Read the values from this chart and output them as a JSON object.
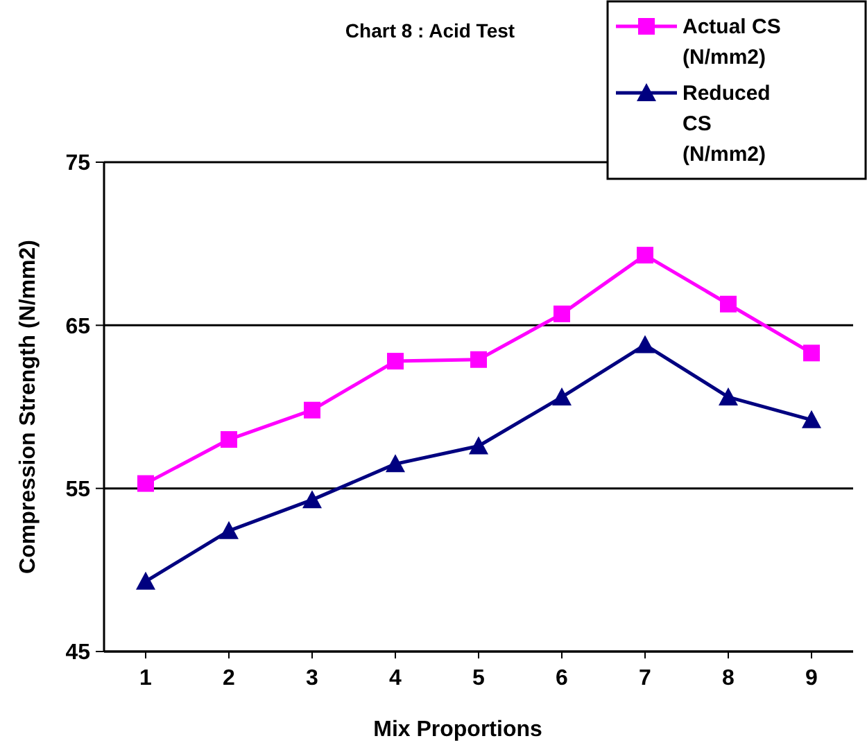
{
  "chart_data": {
    "type": "line",
    "title": "Chart 8 : Acid  Test",
    "xlabel": "Mix  Proportions",
    "ylabel": "Compression Strength (N/mm2)",
    "categories": [
      "1",
      "2",
      "3",
      "4",
      "5",
      "6",
      "7",
      "8",
      "9"
    ],
    "series": [
      {
        "name": "Actual CS (N/mm2)",
        "color": "#ff00ff",
        "marker": "square",
        "values": [
          55.3,
          58.0,
          59.8,
          62.8,
          62.9,
          65.7,
          69.3,
          66.3,
          63.3
        ]
      },
      {
        "name": "Reduced CS (N/mm2)",
        "color": "#000080",
        "marker": "triangle",
        "values": [
          49.3,
          52.4,
          54.3,
          56.5,
          57.6,
          60.6,
          63.8,
          60.6,
          59.2
        ]
      }
    ],
    "ylim": [
      45,
      75
    ],
    "yticks": [
      45,
      55,
      65,
      75
    ],
    "grid": "y",
    "legend": "top right",
    "line_style": "solid"
  }
}
